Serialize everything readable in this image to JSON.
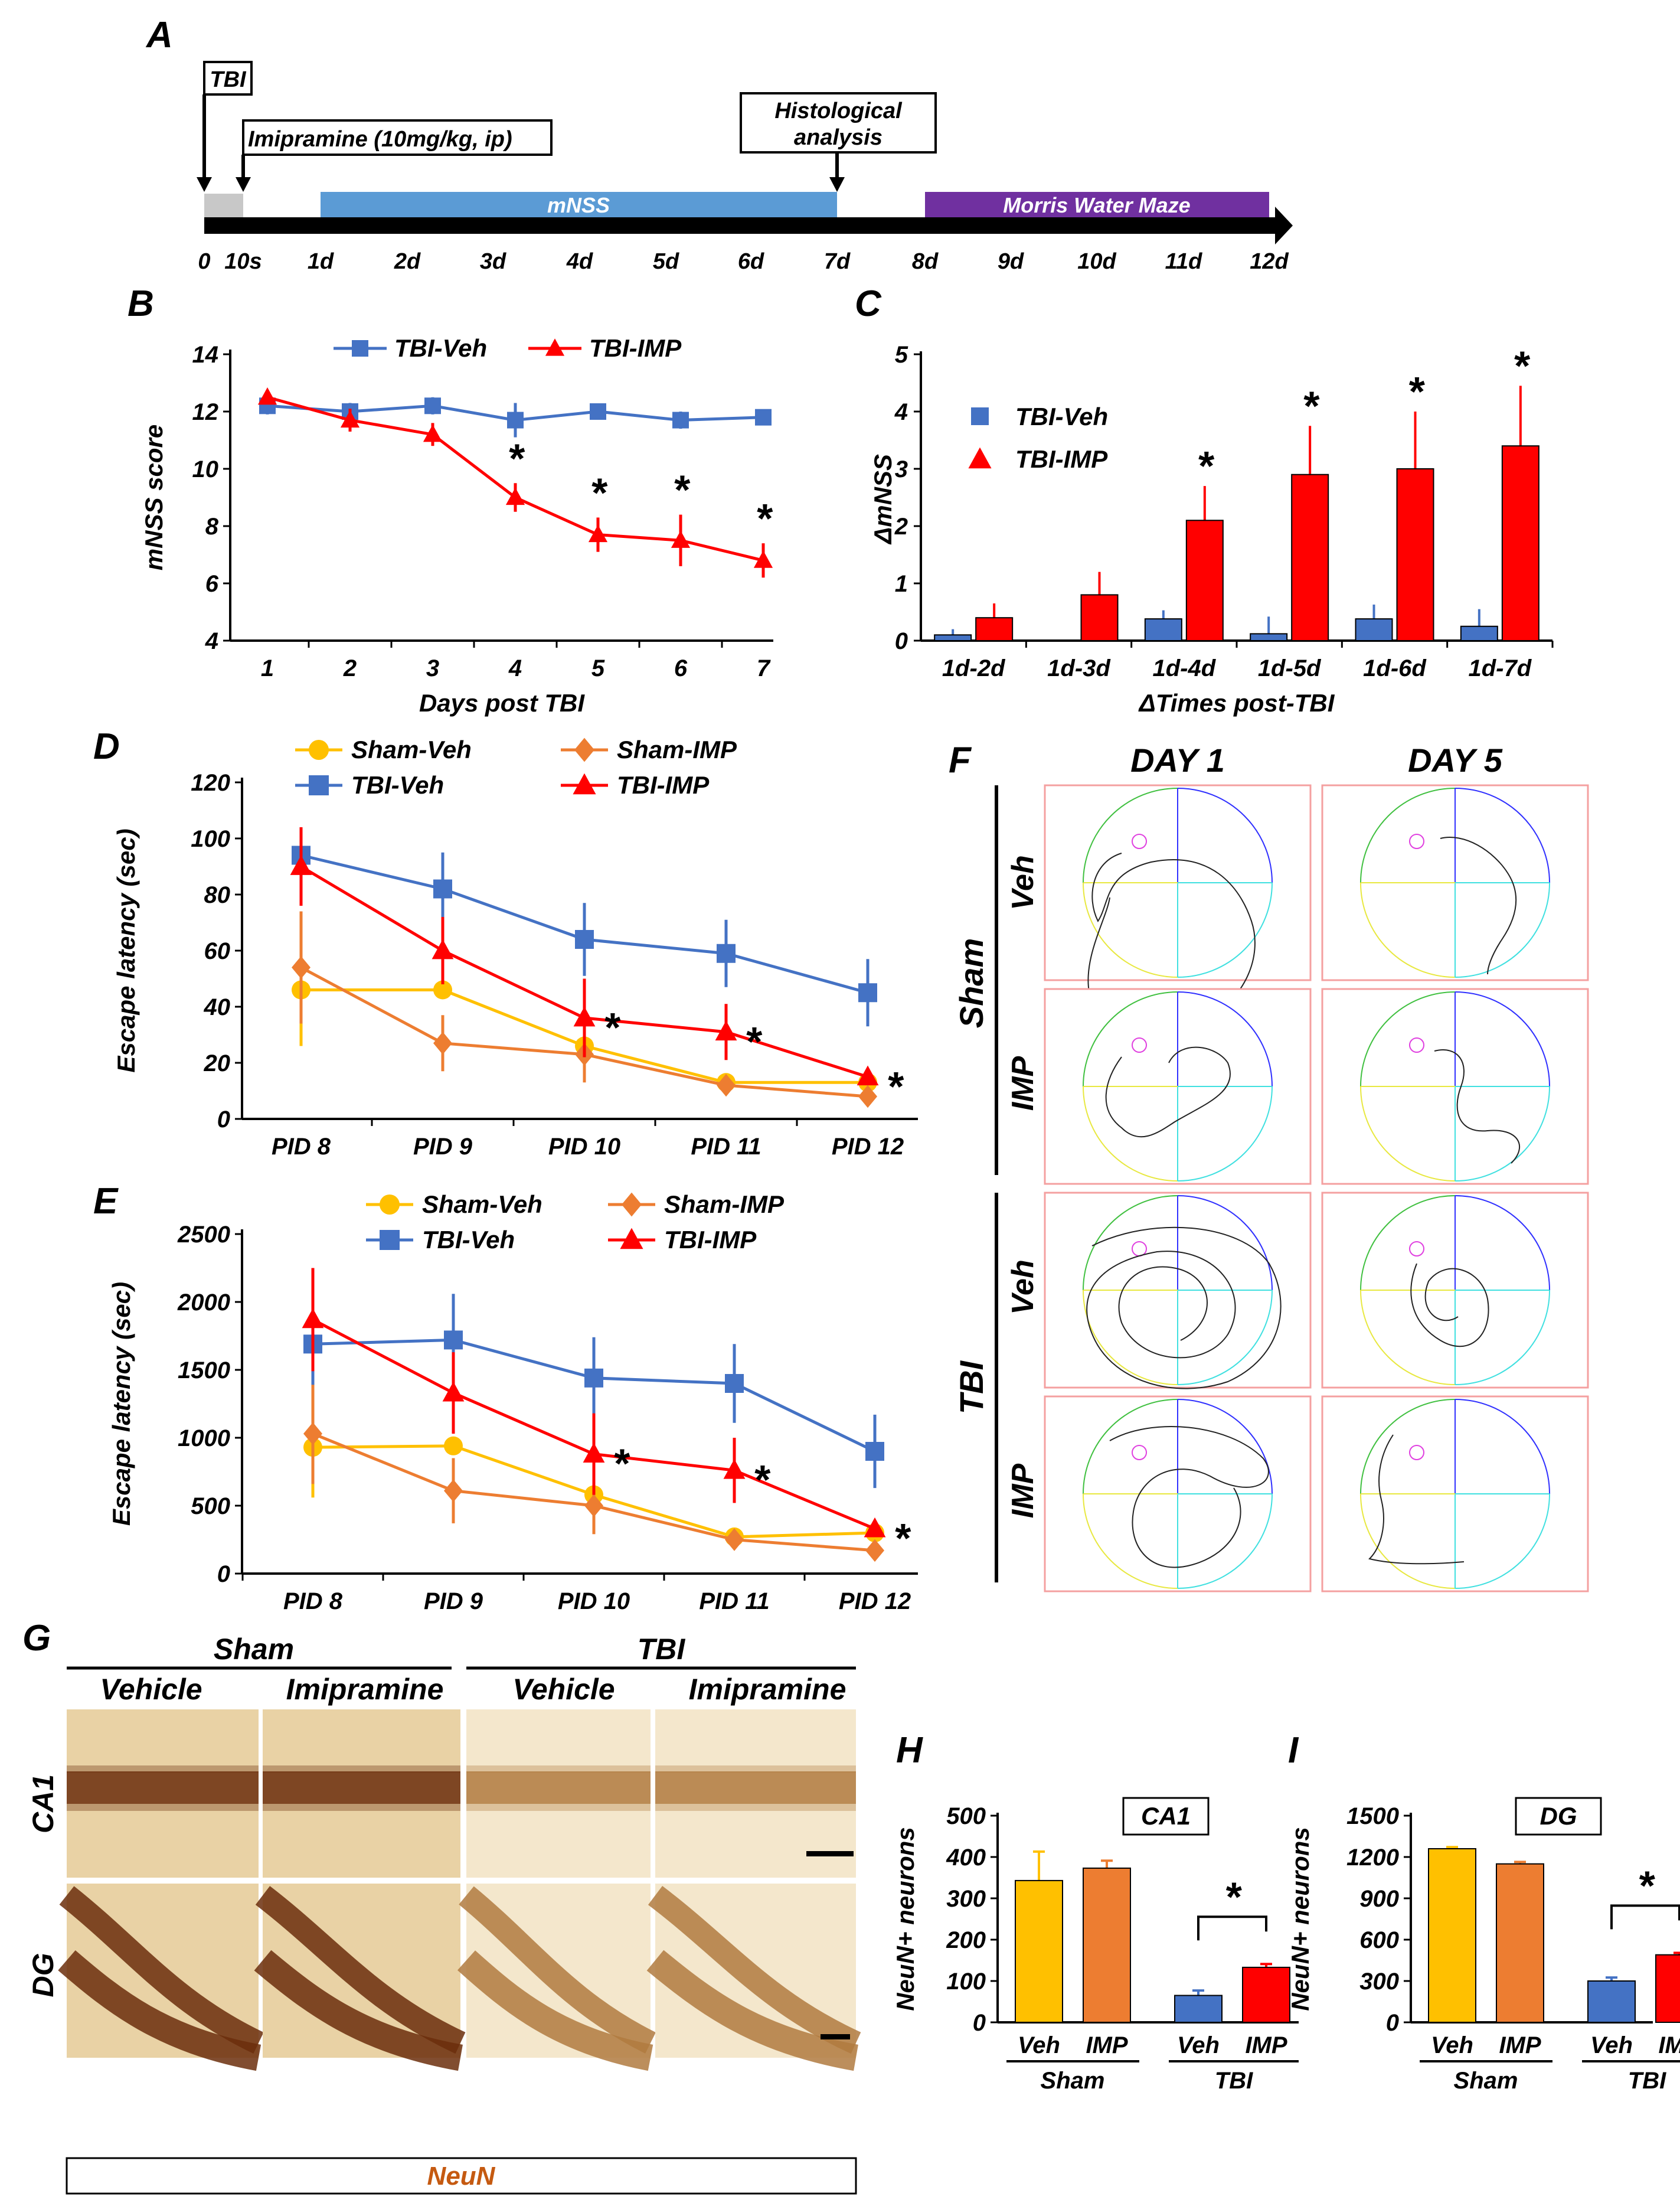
{
  "colors": {
    "veh": "#4472C4",
    "imp": "#FF0000",
    "sham_veh": "#FFC000",
    "sham_imp": "#ED7D31",
    "mnss_bar": "#5B9BD5",
    "mwm_bar": "#7030A0",
    "neun_text": "#C55A11",
    "tissue_light": "#F3E4C7",
    "tissue_dark": "#6B2E0C"
  },
  "panel_letters": {
    "a": "A",
    "b": "B",
    "c": "C",
    "d": "D",
    "e": "E",
    "f": "F",
    "g": "G",
    "h": "H",
    "i": "I"
  },
  "timeline": {
    "tbi_label": "TBI",
    "imipramine_label": "Imipramine (10mg/kg, ip)",
    "histology_label_line1": "Histological",
    "histology_label_line2": "analysis",
    "mnss_label": "mNSS",
    "mwm_label": "Morris Water Maze",
    "ticks": [
      "0",
      "10s",
      "1d",
      "2d",
      "3d",
      "4d",
      "5d",
      "6d",
      "7d",
      "8d",
      "9d",
      "10d",
      "11d",
      "12d"
    ]
  },
  "legend_labels": {
    "tbi_veh": "TBI-Veh",
    "tbi_imp": "TBI-IMP",
    "sham_veh": "Sham-Veh",
    "sham_imp": "Sham-IMP"
  },
  "panel_f": {
    "day1": "DAY 1",
    "day5": "DAY 5",
    "sham": "Sham",
    "tbi": "TBI",
    "veh": "Veh",
    "imp": "IMP"
  },
  "panel_g": {
    "sham": "Sham",
    "tbi": "TBI",
    "vehicle": "Vehicle",
    "imipramine": "Imipramine",
    "ca1": "CA1",
    "dg": "DG",
    "stain": "NeuN"
  },
  "chart_data": [
    {
      "id": "B",
      "type": "line",
      "xlabel": "Days post TBI",
      "ylabel": "mNSS score",
      "categories": [
        "1",
        "2",
        "3",
        "4",
        "5",
        "6",
        "7"
      ],
      "ylim": [
        4,
        14
      ],
      "yticks": [
        "4",
        "6",
        "8",
        "10",
        "12",
        "14"
      ],
      "series": [
        {
          "name": "TBI-Veh",
          "values": [
            12.2,
            12.0,
            12.2,
            11.7,
            12.0,
            11.7,
            11.8
          ],
          "errors": [
            0.3,
            0.3,
            0.3,
            0.6,
            0.2,
            0.3,
            0.2
          ]
        },
        {
          "name": "TBI-IMP",
          "values": [
            12.5,
            11.7,
            11.2,
            9.0,
            7.7,
            7.5,
            6.8
          ],
          "errors": [
            0.2,
            0.4,
            0.4,
            0.5,
            0.6,
            0.9,
            0.6
          ]
        }
      ],
      "significance": [
        "",
        "",
        "",
        "*",
        "*",
        "*",
        "*"
      ]
    },
    {
      "id": "C",
      "type": "bar",
      "xlabel": "ΔTimes post-TBI",
      "ylabel": "ΔmNSS",
      "categories": [
        "1d-2d",
        "1d-3d",
        "1d-4d",
        "1d-5d",
        "1d-6d",
        "1d-7d"
      ],
      "ylim": [
        0,
        5
      ],
      "yticks": [
        "0",
        "1",
        "2",
        "3",
        "4",
        "5"
      ],
      "series": [
        {
          "name": "TBI-Veh",
          "values": [
            0.1,
            0.0,
            0.38,
            0.12,
            0.38,
            0.25
          ],
          "errors": [
            0.1,
            0.0,
            0.15,
            0.3,
            0.25,
            0.3
          ]
        },
        {
          "name": "TBI-IMP",
          "values": [
            0.4,
            0.8,
            2.1,
            2.9,
            3.0,
            3.4
          ],
          "errors": [
            0.25,
            0.4,
            0.6,
            0.85,
            1.0,
            1.05
          ]
        }
      ],
      "significance": [
        "",
        "",
        "*",
        "*",
        "*",
        "*"
      ]
    },
    {
      "id": "D",
      "type": "line",
      "xlabel": "",
      "ylabel": "Escape latency (sec)",
      "categories": [
        "PID 8",
        "PID 9",
        "PID 10",
        "PID 11",
        "PID 12"
      ],
      "ylim": [
        0,
        120
      ],
      "yticks": [
        "0",
        "20",
        "40",
        "60",
        "80",
        "100",
        "120"
      ],
      "series": [
        {
          "name": "Sham-Veh",
          "values": [
            46,
            46,
            26,
            13,
            13
          ],
          "errors": [
            20,
            0,
            0,
            2,
            0
          ]
        },
        {
          "name": "Sham-IMP",
          "values": [
            54,
            27,
            23,
            12,
            8
          ],
          "errors": [
            20,
            10,
            10,
            2,
            1
          ]
        },
        {
          "name": "TBI-Veh",
          "values": [
            94,
            82,
            64,
            59,
            45
          ],
          "errors": [
            10,
            13,
            13,
            12,
            12
          ]
        },
        {
          "name": "TBI-IMP",
          "values": [
            90,
            60,
            36,
            31,
            15
          ],
          "errors": [
            14,
            12,
            14,
            10,
            1
          ]
        }
      ],
      "significance": [
        "",
        "",
        "*",
        "*",
        "*"
      ]
    },
    {
      "id": "E",
      "type": "line",
      "xlabel": "",
      "ylabel": "Escape latency (sec)",
      "categories": [
        "PID 8",
        "PID 9",
        "PID 10",
        "PID 11",
        "PID 12"
      ],
      "ylim": [
        0,
        2500
      ],
      "yticks": [
        "0",
        "500",
        "1000",
        "1500",
        "2000",
        "2500"
      ],
      "series": [
        {
          "name": "Sham-Veh",
          "values": [
            930,
            940,
            580,
            270,
            300
          ],
          "errors": [
            370,
            0,
            0,
            0,
            0
          ]
        },
        {
          "name": "Sham-IMP",
          "values": [
            1030,
            610,
            500,
            250,
            170
          ],
          "errors": [
            370,
            240,
            210,
            0,
            0
          ]
        },
        {
          "name": "TBI-Veh",
          "values": [
            1690,
            1720,
            1440,
            1400,
            900
          ],
          "errors": [
            300,
            340,
            300,
            290,
            270
          ]
        },
        {
          "name": "TBI-IMP",
          "values": [
            1870,
            1330,
            880,
            760,
            330
          ],
          "errors": [
            380,
            300,
            300,
            240,
            0
          ]
        }
      ],
      "significance": [
        "",
        "",
        "*",
        "*",
        "*"
      ]
    },
    {
      "id": "H",
      "type": "bar",
      "title": "CA1",
      "ylabel": "NeuN+ neurons",
      "categories": [
        "Veh",
        "IMP",
        "Veh",
        "IMP"
      ],
      "groups": [
        "Sham",
        "TBI"
      ],
      "values": [
        343,
        373,
        65,
        133
      ],
      "errors": [
        70,
        18,
        12,
        8
      ],
      "ylim": [
        0,
        500
      ],
      "yticks": [
        "0",
        "100",
        "200",
        "300",
        "400",
        "500"
      ],
      "significance": "*"
    },
    {
      "id": "I",
      "type": "bar",
      "title": "DG",
      "ylabel": "NeuN+ neurons",
      "categories": [
        "Veh",
        "IMP",
        "Veh",
        "IMP"
      ],
      "groups": [
        "Sham",
        "TBI"
      ],
      "values": [
        1260,
        1150,
        300,
        490
      ],
      "errors": [
        12,
        14,
        25,
        14
      ],
      "ylim": [
        0,
        1500
      ],
      "yticks": [
        "0",
        "300",
        "600",
        "900",
        "1200",
        "1500"
      ],
      "significance": "*"
    }
  ]
}
